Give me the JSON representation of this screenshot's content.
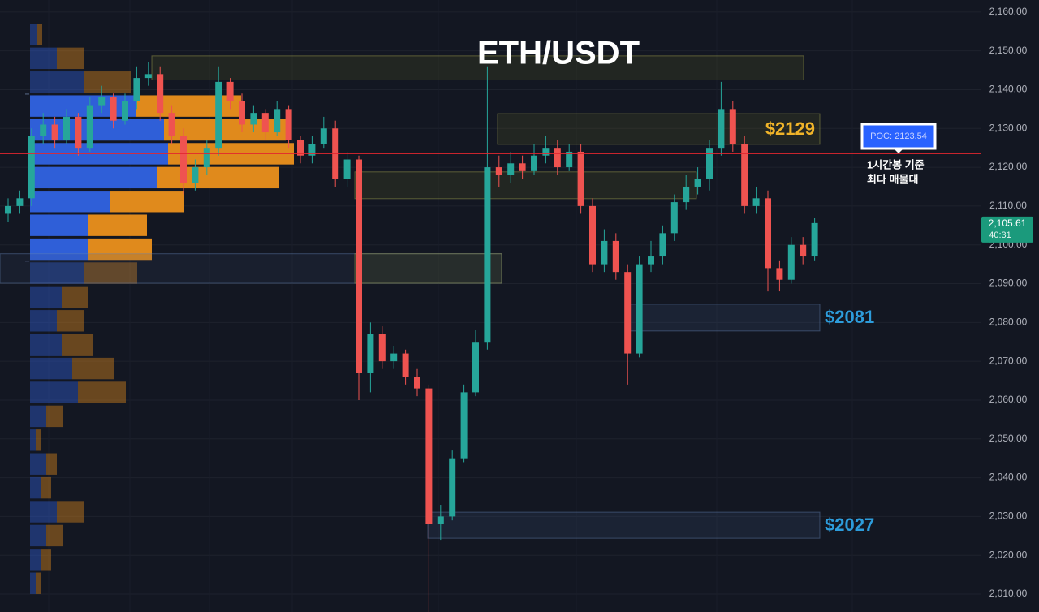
{
  "chart_data": {
    "type": "candlestick",
    "title": "ETH/USDT",
    "up_color": "#26a69a",
    "down_color": "#ef5350",
    "open": [
      2108,
      2110,
      2112,
      2128,
      2131,
      2127,
      2133,
      2125,
      2136,
      2138,
      2132,
      2137,
      2143,
      2144,
      2134,
      2128,
      2116,
      2120,
      2125,
      2142,
      2137,
      2131,
      2134,
      2129,
      2135,
      2127,
      2123,
      2126,
      2130,
      2117,
      2122,
      2067,
      2077,
      2070,
      2072,
      2066,
      2063,
      2028,
      2030,
      2045,
      2062,
      2075,
      2120,
      2118,
      2121,
      2119,
      2123,
      2125,
      2120,
      2124,
      2110,
      2095,
      2101,
      2093,
      2072,
      2095,
      2097,
      2103,
      2111,
      2115,
      2117,
      2125,
      2135,
      2126,
      2110,
      2112,
      2094,
      2091,
      2100,
      2097
    ],
    "high": [
      2112,
      2114,
      2130,
      2134,
      2133,
      2135,
      2134,
      2138,
      2141,
      2139,
      2139,
      2146,
      2147,
      2146,
      2136,
      2130,
      2122,
      2127,
      2146,
      2143,
      2139,
      2136,
      2135,
      2137,
      2136,
      2128,
      2128,
      2133,
      2132,
      2124,
      2123,
      2080,
      2079,
      2074,
      2073,
      2068,
      2064,
      2033,
      2047,
      2064,
      2078,
      2146,
      2123,
      2124,
      2123,
      2126,
      2128,
      2127,
      2126,
      2126,
      2112,
      2104,
      2103,
      2095,
      2097,
      2101,
      2105,
      2113,
      2118,
      2120,
      2127,
      2142,
      2137,
      2128,
      2115,
      2114,
      2096,
      2102,
      2102,
      2107
    ],
    "low": [
      2106,
      2108,
      2110,
      2126,
      2125,
      2126,
      2123,
      2124,
      2134,
      2130,
      2131,
      2135,
      2141,
      2132,
      2126,
      2113,
      2114,
      2118,
      2123,
      2135,
      2129,
      2129,
      2127,
      2128,
      2125,
      2121,
      2121,
      2125,
      2115,
      2115,
      2060,
      2062,
      2068,
      2068,
      2064,
      2061,
      2005,
      2024,
      2029,
      2044,
      2061,
      2073,
      2115,
      2116,
      2117,
      2118,
      2121,
      2118,
      2119,
      2108,
      2093,
      2093,
      2091,
      2064,
      2071,
      2093,
      2095,
      2101,
      2109,
      2113,
      2114,
      2123,
      2124,
      2108,
      2108,
      2088,
      2088,
      2090,
      2095,
      2096
    ],
    "close": [
      2110,
      2112,
      2128,
      2131,
      2127,
      2133,
      2125,
      2136,
      2138,
      2132,
      2137,
      2143,
      2144,
      2134,
      2128,
      2116,
      2120,
      2125,
      2142,
      2137,
      2131,
      2134,
      2129,
      2135,
      2127,
      2123,
      2126,
      2130,
      2117,
      2122,
      2067,
      2077,
      2070,
      2072,
      2066,
      2063,
      2028,
      2030,
      2045,
      2062,
      2075,
      2120,
      2118,
      2121,
      2119,
      2123,
      2125,
      2120,
      2124,
      2110,
      2095,
      2101,
      2093,
      2072,
      2095,
      2097,
      2103,
      2111,
      2115,
      2117,
      2125,
      2135,
      2126,
      2110,
      2112,
      2094,
      2091,
      2100,
      2097,
      2105.61
    ],
    "ylim": [
      2005.4,
      2163.1
    ],
    "yticks": [
      {
        "value": 2010,
        "label": "2,010.00"
      },
      {
        "value": 2020,
        "label": "2,020.00"
      },
      {
        "value": 2030,
        "label": "2,030.00"
      },
      {
        "value": 2040,
        "label": "2,040.00"
      },
      {
        "value": 2050,
        "label": "2,050.00"
      },
      {
        "value": 2060,
        "label": "2,060.00"
      },
      {
        "value": 2070,
        "label": "2,070.00"
      },
      {
        "value": 2080,
        "label": "2,080.00"
      },
      {
        "value": 2090,
        "label": "2,090.00"
      },
      {
        "value": 2100,
        "label": "2,100.00"
      },
      {
        "value": 2110,
        "label": "2,110.00"
      },
      {
        "value": 2120,
        "label": "2,120.00"
      },
      {
        "value": 2130,
        "label": "2,130.00"
      },
      {
        "value": 2140,
        "label": "2,140.00"
      },
      {
        "value": 2150,
        "label": "2,150.00"
      },
      {
        "value": 2160,
        "label": "2,160.00"
      }
    ],
    "grid": true,
    "volume_profile": {
      "bins": [
        2157.3,
        2151.15,
        2145,
        2138.85,
        2132.7,
        2126.55,
        2120.4,
        2114.25,
        2108.1,
        2101.95,
        2095.8,
        2089.65,
        2083.5,
        2077.35,
        2071.2,
        2065.05,
        2058.9,
        2052.75,
        2046.6,
        2040.45,
        2034.3,
        2028.15,
        2022,
        2015.85,
        2009.7
      ],
      "buy": [
        8,
        33,
        66,
        130,
        165,
        170,
        157,
        98,
        72,
        72,
        66,
        39,
        33,
        39,
        52,
        59,
        20,
        7,
        20,
        13,
        33,
        20,
        13,
        7
      ],
      "sell": [
        7,
        33,
        58,
        130,
        150,
        155,
        150,
        92,
        72,
        78,
        66,
        33,
        33,
        39,
        52,
        59,
        20,
        7,
        13,
        13,
        33,
        20,
        13,
        7
      ],
      "buy_color": "#2f5fd8",
      "sell_color": "#e08a1c",
      "value_area": [
        2095.8,
        2138.85
      ]
    },
    "zones": [
      {
        "top": 2148.7,
        "bottom": 2142.5,
        "color": "olive"
      },
      {
        "top": 2133.8,
        "bottom": 2125.9,
        "color": "olive",
        "label": "$2129",
        "label_color": "#f0b429"
      },
      {
        "top": 2118.8,
        "bottom": 2111.9,
        "color": "olive"
      },
      {
        "top": 2097.7,
        "bottom": 2090.1,
        "color": "olive"
      },
      {
        "top": 2084.7,
        "bottom": 2077.8,
        "color": "blue",
        "label": "$2081",
        "label_color": "#2d9cdb"
      },
      {
        "top": 2031.1,
        "bottom": 2024.4,
        "color": "blue",
        "label": "$2027",
        "label_color": "#2d9cdb"
      }
    ],
    "poc": {
      "value": 2123.54,
      "label": "POC: 2123.54",
      "color": "#e3262f"
    },
    "annotation": [
      "1시간봉 기준",
      "최다 매물대"
    ],
    "last_price": {
      "value": 2105.61,
      "label": "2,105.61",
      "countdown": "40:31"
    }
  }
}
